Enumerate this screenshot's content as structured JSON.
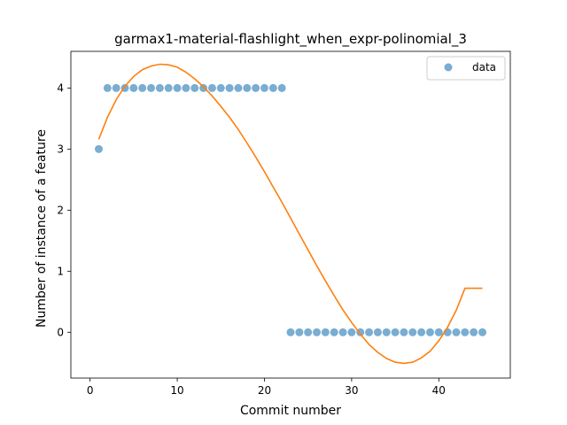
{
  "chart_data": {
    "type": "scatter",
    "title": "garmax1-material-flashlight_when_expr-polinomial_3",
    "xlabel": "Commit number",
    "ylabel": "Number of instance of a feature",
    "xlim": [
      -2.2,
      48.2
    ],
    "ylim": [
      -0.75,
      4.6
    ],
    "xticks": [
      0,
      10,
      20,
      30,
      40
    ],
    "yticks": [
      0,
      1,
      2,
      3,
      4
    ],
    "legend_position": "upper right",
    "series": [
      {
        "name": "data",
        "kind": "scatter",
        "color": "#1f77b4",
        "x": [
          1,
          2,
          3,
          4,
          5,
          6,
          7,
          8,
          9,
          10,
          11,
          12,
          13,
          14,
          15,
          16,
          17,
          18,
          19,
          20,
          21,
          22,
          23,
          24,
          25,
          26,
          27,
          28,
          29,
          30,
          31,
          32,
          33,
          34,
          35,
          36,
          37,
          38,
          39,
          40,
          41,
          42,
          43,
          44,
          45
        ],
        "y": [
          3,
          4,
          4,
          4,
          4,
          4,
          4,
          4,
          4,
          4,
          4,
          4,
          4,
          4,
          4,
          4,
          4,
          4,
          4,
          4,
          4,
          4,
          0,
          0,
          0,
          0,
          0,
          0,
          0,
          0,
          0,
          0,
          0,
          0,
          0,
          0,
          0,
          0,
          0,
          0,
          0,
          0,
          0,
          0,
          0
        ]
      },
      {
        "kind": "line",
        "color": "#ff7f0e",
        "x": [
          1,
          2,
          3,
          4,
          5,
          6,
          7,
          8,
          9,
          10,
          11,
          12,
          13,
          14,
          15,
          16,
          17,
          18,
          19,
          20,
          21,
          22,
          23,
          24,
          25,
          26,
          27,
          28,
          29,
          30,
          31,
          32,
          33,
          34,
          35,
          36,
          37,
          38,
          39,
          40,
          41,
          42,
          43,
          44,
          45
        ],
        "y": [
          3.16,
          3.52,
          3.81,
          4.03,
          4.19,
          4.3,
          4.36,
          4.39,
          4.38,
          4.34,
          4.26,
          4.15,
          4.02,
          3.87,
          3.7,
          3.52,
          3.32,
          3.1,
          2.87,
          2.63,
          2.38,
          2.13,
          1.87,
          1.61,
          1.35,
          1.09,
          0.84,
          0.6,
          0.37,
          0.16,
          -0.03,
          -0.2,
          -0.33,
          -0.43,
          -0.49,
          -0.51,
          -0.49,
          -0.42,
          -0.31,
          -0.14,
          0.08,
          0.36,
          0.72,
          0.72,
          0.72
        ]
      }
    ]
  }
}
